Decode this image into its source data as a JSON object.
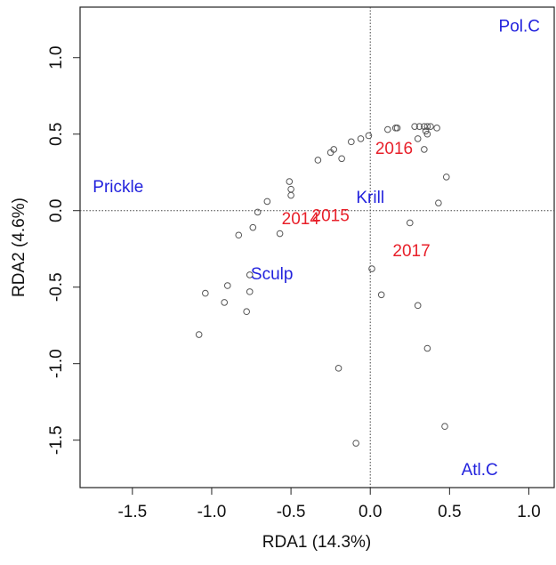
{
  "chart_data": {
    "type": "scatter",
    "xlabel": "RDA1 (14.3%)",
    "ylabel": "RDA2 (4.6%)",
    "xlim": [
      -1.83,
      1.16
    ],
    "ylim": [
      -1.81,
      1.33
    ],
    "xticks": [
      -1.5,
      {
        "value": -1,
        "label": "-1.0"
      },
      -0.5,
      {
        "value": 0,
        "label": "0.0"
      },
      0.5,
      {
        "value": 1,
        "label": "1.0"
      }
    ],
    "yticks": [
      -1.5,
      {
        "value": -1,
        "label": "-1.0"
      },
      -0.5,
      {
        "value": 0,
        "label": "0.0"
      },
      0.5,
      {
        "value": 1,
        "label": "1.0"
      }
    ],
    "reference_lines": {
      "x": 0,
      "y": 0
    },
    "series": [
      {
        "color": "#555555",
        "x": [
          0.11,
          0.16,
          0.17,
          0.28,
          0.31,
          0.34,
          0.36,
          0.38,
          0.42,
          0.35,
          0.36,
          0.3,
          0.34,
          -0.01,
          -0.06,
          -0.12,
          -0.23,
          -0.25,
          -0.18,
          -0.33,
          -0.51,
          -0.5,
          -0.5,
          0.48,
          -0.65,
          -0.71,
          0.43,
          0.25,
          -0.74,
          -0.83,
          -0.57,
          0.01,
          0.07,
          -0.76,
          -0.76,
          -0.9,
          -1.04,
          -0.92,
          -0.78,
          0.3,
          -1.08,
          0.36,
          -0.2,
          0.47,
          -0.09
        ],
        "values": [
          0.53,
          0.54,
          0.54,
          0.55,
          0.55,
          0.55,
          0.55,
          0.55,
          0.54,
          0.52,
          0.5,
          0.47,
          0.4,
          0.49,
          0.47,
          0.45,
          0.4,
          0.38,
          0.34,
          0.33,
          0.19,
          0.14,
          0.1,
          0.22,
          0.06,
          -0.01,
          0.05,
          -0.08,
          -0.11,
          -0.16,
          -0.15,
          -0.38,
          -0.55,
          -0.42,
          -0.53,
          -0.49,
          -0.54,
          -0.6,
          -0.66,
          -0.62,
          -0.81,
          -0.9,
          -1.03,
          -1.41,
          -1.52
        ]
      }
    ],
    "label_groups": [
      {
        "color": "#2222dd",
        "labels": [
          {
            "text": "Pol.C",
            "x": 0.94,
            "y": 1.2
          },
          {
            "text": "Prickle",
            "x": -1.59,
            "y": 0.15
          },
          {
            "text": "Krill",
            "x": 0.0,
            "y": 0.08
          },
          {
            "text": "Sculp",
            "x": -0.62,
            "y": -0.42
          },
          {
            "text": "Atl.C",
            "x": 0.69,
            "y": -1.7
          }
        ]
      },
      {
        "color": "#e8202a",
        "labels": [
          {
            "text": "2016",
            "x": 0.15,
            "y": 0.4
          },
          {
            "text": "2014",
            "x": -0.44,
            "y": -0.06
          },
          {
            "text": "2015",
            "x": -0.25,
            "y": -0.04
          },
          {
            "text": "2017",
            "x": 0.26,
            "y": -0.27
          }
        ]
      }
    ]
  }
}
